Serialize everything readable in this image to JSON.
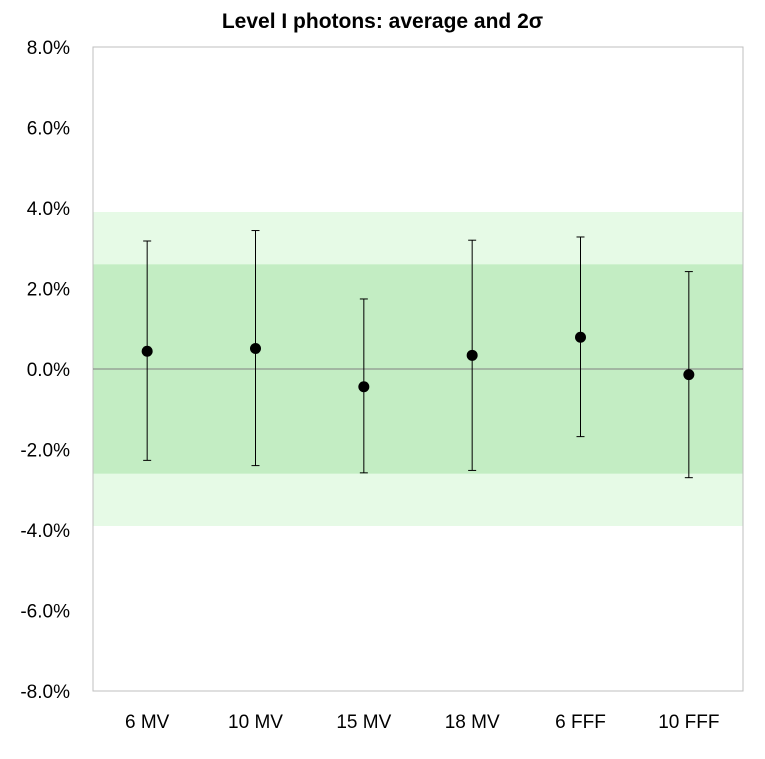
{
  "chart_data": {
    "type": "scatter",
    "title": "Level I photons: average and 2σ",
    "categories": [
      "6 MV",
      "10 MV",
      "15 MV",
      "18 MV",
      "6 FFF",
      "10 FFF"
    ],
    "series": [
      {
        "values": [
          0.44,
          0.51,
          -0.44,
          0.34,
          0.79,
          -0.14
        ],
        "error_upper": [
          3.18,
          3.44,
          1.74,
          3.2,
          3.28,
          2.42
        ],
        "error_lower": [
          -2.27,
          -2.4,
          -2.58,
          -2.52,
          -1.68,
          -2.7
        ]
      }
    ],
    "bands": [
      {
        "from": -3.9,
        "to": 3.9,
        "color": "#e6fae6"
      },
      {
        "from": -2.6,
        "to": 2.6,
        "color": "#c3edc3"
      }
    ],
    "ylim": [
      -8,
      8
    ],
    "yticks": [
      8,
      6,
      4,
      2,
      0,
      -2,
      -4,
      -6,
      -8
    ],
    "ytick_labels": [
      "8.0%",
      "6.0%",
      "4.0%",
      "2.0%",
      "0.0%",
      "-2.0%",
      "-4.0%",
      "-6.0%",
      "-8.0%"
    ],
    "grid": false,
    "legend": "none",
    "colors": {
      "marker": "#000000",
      "axis": "#bfbfbf",
      "zero_line": "#808080"
    }
  }
}
